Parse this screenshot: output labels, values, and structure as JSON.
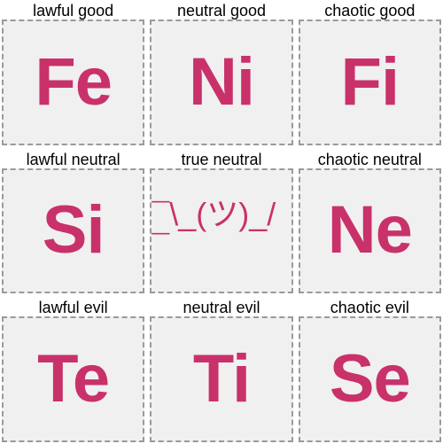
{
  "grid": {
    "type": "infographic",
    "rows": 3,
    "cols": 3,
    "background_color": "#ffffff",
    "tile_background": "#f0f0f0",
    "tile_border_color": "#9a9a9a",
    "tile_border_style": "dashed",
    "tile_border_width": 2,
    "gap": 6,
    "label_color": "#000000",
    "label_fontsize": 18,
    "value_color": "#c9316a",
    "value_fontsize": 76,
    "value_fontweight": 700,
    "shrug_fontsize": 36,
    "cells": [
      {
        "label": "lawful good",
        "value": "Fe",
        "kind": "normal"
      },
      {
        "label": "neutral good",
        "value": "Ni",
        "kind": "normal"
      },
      {
        "label": "chaotic good",
        "value": "Fi",
        "kind": "normal"
      },
      {
        "label": "lawful neutral",
        "value": "Si",
        "kind": "normal"
      },
      {
        "label": "true neutral",
        "value": "¯\\_(ツ)_/¯",
        "kind": "shrug"
      },
      {
        "label": "chaotic neutral",
        "value": "Ne",
        "kind": "normal"
      },
      {
        "label": "lawful evil",
        "value": "Te",
        "kind": "normal"
      },
      {
        "label": "neutral evil",
        "value": "Ti",
        "kind": "normal"
      },
      {
        "label": "chaotic evil",
        "value": "Se",
        "kind": "normal"
      }
    ]
  }
}
